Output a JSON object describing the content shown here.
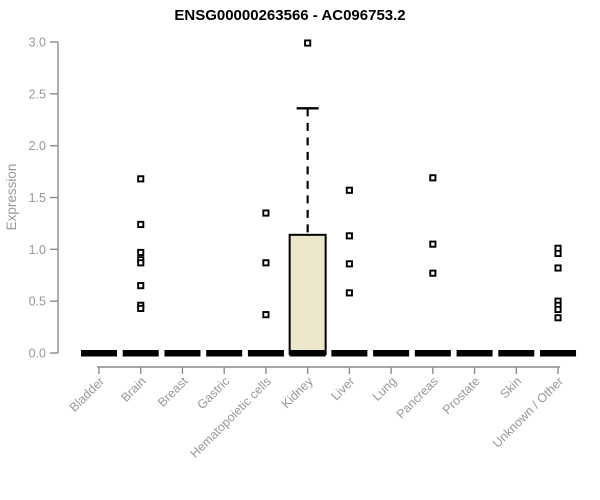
{
  "chart_data": {
    "type": "boxplot",
    "title": "ENSG00000263566 - AC096753.2",
    "ylabel": "Expression",
    "xlabel": "",
    "ylim": [
      0.0,
      3.0
    ],
    "yticks": [
      0.0,
      0.5,
      1.0,
      1.5,
      2.0,
      2.5,
      3.0
    ],
    "grid": false,
    "legend": "none",
    "categories": [
      "Bladder",
      "Brain",
      "Breast",
      "Gastric",
      "Hematopoietic cells",
      "Kidney",
      "Liver",
      "Lung",
      "Pancreas",
      "Prostate",
      "Skin",
      "Unknown / Other"
    ],
    "boxes": [
      {
        "category": "Bladder",
        "q1": 0,
        "median": 0,
        "q3": 0,
        "whisker_low": 0,
        "whisker_high": 0,
        "points": []
      },
      {
        "category": "Brain",
        "q1": 0,
        "median": 0,
        "q3": 0,
        "whisker_low": 0,
        "whisker_high": 0,
        "points": [
          1.68,
          1.24,
          0.97,
          0.9,
          0.87,
          0.65,
          0.46,
          0.43
        ]
      },
      {
        "category": "Breast",
        "q1": 0,
        "median": 0,
        "q3": 0,
        "whisker_low": 0,
        "whisker_high": 0,
        "points": []
      },
      {
        "category": "Gastric",
        "q1": 0,
        "median": 0,
        "q3": 0,
        "whisker_low": 0,
        "whisker_high": 0,
        "points": []
      },
      {
        "category": "Hematopoietic cells",
        "q1": 0,
        "median": 0,
        "q3": 0,
        "whisker_low": 0,
        "whisker_high": 0,
        "points": [
          1.35,
          0.87,
          0.37
        ]
      },
      {
        "category": "Kidney",
        "q1": 0,
        "median": 0,
        "q3": 1.14,
        "whisker_low": 0,
        "whisker_high": 2.36,
        "points": [
          2.99
        ]
      },
      {
        "category": "Liver",
        "q1": 0,
        "median": 0,
        "q3": 0,
        "whisker_low": 0,
        "whisker_high": 0,
        "points": [
          1.57,
          1.13,
          0.86,
          0.58
        ]
      },
      {
        "category": "Lung",
        "q1": 0,
        "median": 0,
        "q3": 0,
        "whisker_low": 0,
        "whisker_high": 0,
        "points": []
      },
      {
        "category": "Pancreas",
        "q1": 0,
        "median": 0,
        "q3": 0,
        "whisker_low": 0,
        "whisker_high": 0,
        "points": [
          1.69,
          1.05,
          0.77
        ]
      },
      {
        "category": "Prostate",
        "q1": 0,
        "median": 0,
        "q3": 0,
        "whisker_low": 0,
        "whisker_high": 0,
        "points": []
      },
      {
        "category": "Skin",
        "q1": 0,
        "median": 0,
        "q3": 0,
        "whisker_low": 0,
        "whisker_high": 0,
        "points": []
      },
      {
        "category": "Unknown / Other",
        "q1": 0,
        "median": 0,
        "q3": 0,
        "whisker_low": 0,
        "whisker_high": 0,
        "points": [
          1.01,
          0.96,
          0.82,
          0.5,
          0.46,
          0.42,
          0.34
        ]
      }
    ],
    "colors": {
      "box_fill": "#ece7cb",
      "box_stroke": "#000000",
      "collapsed_box": "#000000",
      "marker_stroke": "#000000",
      "marker_fill": "#ffffff",
      "axis_line": "#8c8c8c",
      "tick_label": "#989898",
      "title_text": "#000000"
    }
  }
}
